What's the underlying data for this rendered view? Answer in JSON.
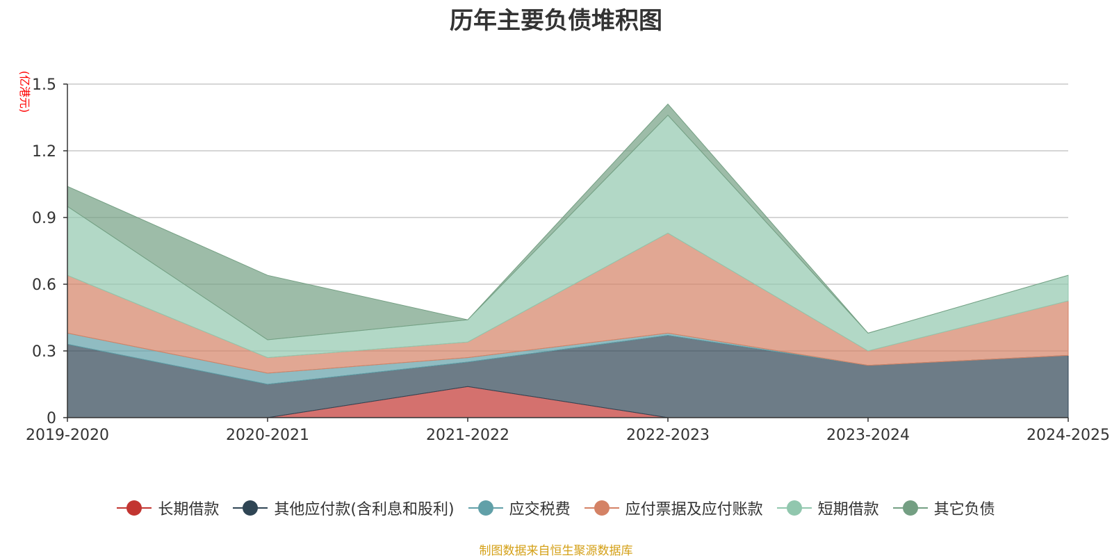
{
  "chart_data": {
    "type": "area",
    "title": "历年主要负债堆积图",
    "ylabel": "(亿港元)",
    "xlabel": "",
    "categories": [
      "2019-2020",
      "2020-2021",
      "2021-2022",
      "2022-2023",
      "2023-2024",
      "2024-2025"
    ],
    "ylim": [
      0,
      1.5
    ],
    "yticks": [
      0,
      0.3,
      0.6,
      0.9,
      1.2,
      1.5
    ],
    "ytick_labels": [
      "0",
      "0.3",
      "0.6",
      "0.9",
      "1.2",
      "1.5"
    ],
    "grid": true,
    "legend_position": "bottom",
    "stacked": true,
    "series": [
      {
        "name": "长期借款",
        "color": "#c23531",
        "values": [
          0,
          0,
          0.14,
          0,
          0,
          0
        ]
      },
      {
        "name": "其他应付款(含利息和股利)",
        "color": "#2f4554",
        "values": [
          0.33,
          0.15,
          0.11,
          0.37,
          0.235,
          0.28
        ]
      },
      {
        "name": "应交税费",
        "color": "#61a0a8",
        "values": [
          0.05,
          0.05,
          0.02,
          0.01,
          0,
          0
        ]
      },
      {
        "name": "应付票据及应付账款",
        "color": "#d48265",
        "values": [
          0.26,
          0.07,
          0.07,
          0.45,
          0.065,
          0.245
        ]
      },
      {
        "name": "短期借款",
        "color": "#91c7ae",
        "values": [
          0.31,
          0.08,
          0.1,
          0.53,
          0.08,
          0.115
        ]
      },
      {
        "name": "其它负债",
        "color": "#749f83",
        "values": [
          0.09,
          0.29,
          0,
          0.05,
          0,
          0
        ]
      }
    ]
  },
  "source_note": "制图数据来自恒生聚源数据库"
}
